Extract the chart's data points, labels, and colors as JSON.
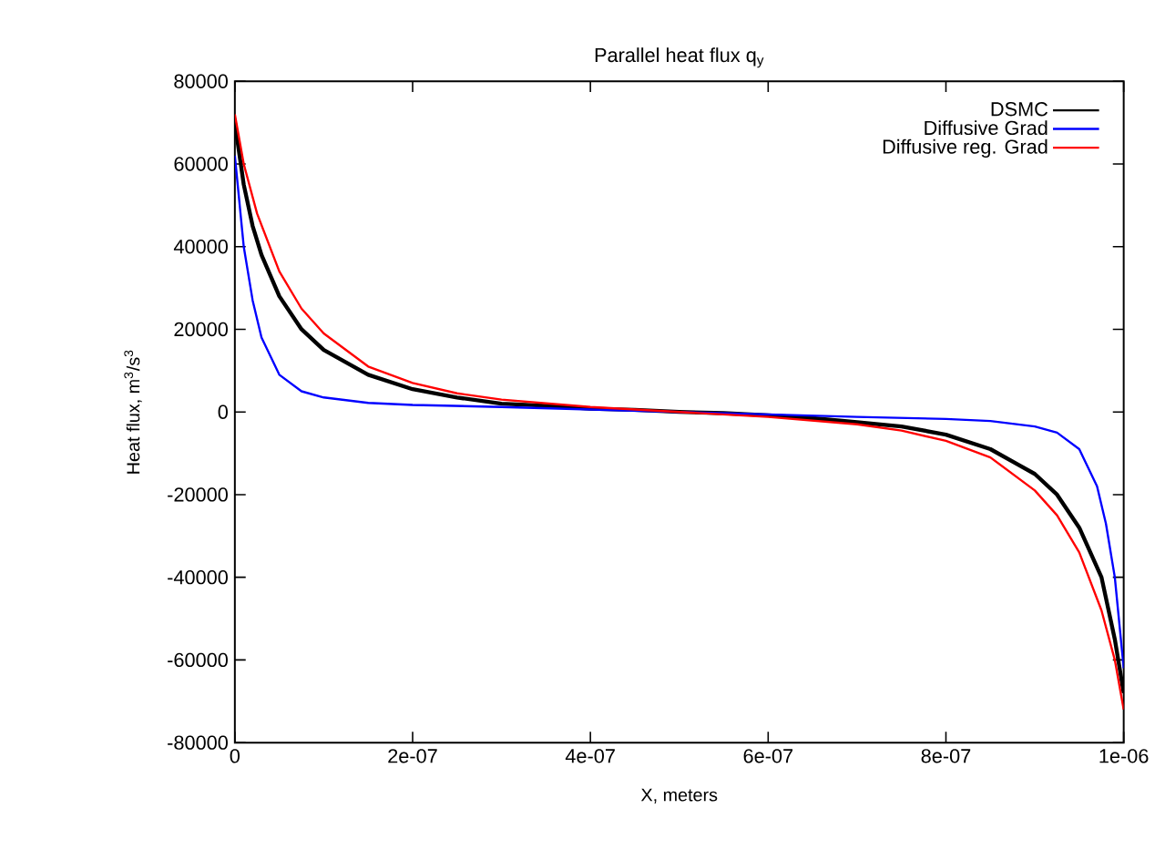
{
  "chart_data": {
    "type": "line",
    "title": "Parallel heat flux q$_{y}$",
    "xlabel": "X, meters",
    "ylabel": "Heat flux, m$^{3}$/s$^{3}$",
    "xlim": [
      0,
      1e-06
    ],
    "ylim": [
      -80000,
      80000
    ],
    "xticks": [
      {
        "value": 0,
        "label": "0"
      },
      {
        "value": 2e-07,
        "label": "2e-07"
      },
      {
        "value": 4e-07,
        "label": "4e-07"
      },
      {
        "value": 6e-07,
        "label": "6e-07"
      },
      {
        "value": 8e-07,
        "label": "8e-07"
      },
      {
        "value": 1e-06,
        "label": "1e-06"
      }
    ],
    "yticks": [
      -80000,
      -60000,
      -40000,
      -20000,
      0,
      20000,
      40000,
      60000,
      80000
    ],
    "legend": "top right",
    "grid": false,
    "marker": "none",
    "line_style": "solid",
    "series": [
      {
        "name": "DSMC",
        "color": "#000000",
        "x": [
          0,
          1e-08,
          2e-08,
          3e-08,
          5e-08,
          7.5e-08,
          1e-07,
          1.5e-07,
          2e-07,
          2.5e-07,
          3e-07,
          3.5e-07,
          4e-07,
          4.5e-07,
          5e-07,
          5.5e-07,
          6e-07,
          6.5e-07,
          7e-07,
          7.5e-07,
          8e-07,
          8.5e-07,
          9e-07,
          9.25e-07,
          9.5e-07,
          9.75e-07,
          9.9e-07,
          1e-06
        ],
        "values": [
          70000,
          55000,
          45000,
          38000,
          28000,
          20000,
          15000,
          9000,
          5500,
          3500,
          2000,
          1500,
          800,
          500,
          0,
          -300,
          -800,
          -1500,
          -2500,
          -3500,
          -5500,
          -9000,
          -15000,
          -20000,
          -28000,
          -40000,
          -55000,
          -68000
        ]
      },
      {
        "name": "Diffusive Grad",
        "color": "#0000ff",
        "x": [
          0,
          1e-08,
          2e-08,
          3e-08,
          5e-08,
          7.5e-08,
          1e-07,
          1.5e-07,
          2e-07,
          3e-07,
          4e-07,
          5e-07,
          6e-07,
          7e-07,
          8e-07,
          8.5e-07,
          9e-07,
          9.25e-07,
          9.5e-07,
          9.7e-07,
          9.8e-07,
          9.9e-07,
          1e-06
        ],
        "values": [
          62000,
          40000,
          27000,
          18000,
          9000,
          5000,
          3500,
          2200,
          1700,
          1200,
          600,
          0,
          -600,
          -1200,
          -1700,
          -2200,
          -3500,
          -5000,
          -9000,
          -18000,
          -27000,
          -40000,
          -62000
        ]
      },
      {
        "name": "Diffusive reg. Grad",
        "color": "#ff0000",
        "x": [
          0,
          1e-08,
          2.5e-08,
          5e-08,
          7.5e-08,
          1e-07,
          1.5e-07,
          2e-07,
          2.5e-07,
          3e-07,
          4e-07,
          5e-07,
          6e-07,
          7e-07,
          7.5e-07,
          8e-07,
          8.5e-07,
          9e-07,
          9.25e-07,
          9.5e-07,
          9.75e-07,
          9.9e-07,
          1e-06
        ],
        "values": [
          72000,
          60000,
          48000,
          34000,
          25000,
          19000,
          11000,
          7000,
          4500,
          3000,
          1200,
          0,
          -1200,
          -3000,
          -4500,
          -7000,
          -11000,
          -19000,
          -25000,
          -34000,
          -48000,
          -60000,
          -72000
        ]
      }
    ]
  }
}
